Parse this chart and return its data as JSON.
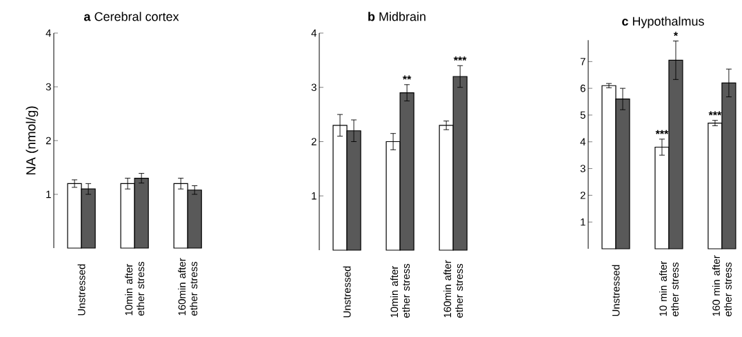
{
  "chart_data": [
    {
      "type": "bar",
      "title": "**a** Cerebral cortex",
      "ylabel": "NA (nmol/g)",
      "categories": [
        "Unstressed",
        "10min after ether stress",
        "160min after ether stress"
      ],
      "series": [
        {
          "color": "#ffffff",
          "values": [
            1.2,
            1.2,
            1.2
          ],
          "errors": [
            0.07,
            0.1,
            0.1
          ]
        },
        {
          "color": "#595959",
          "values": [
            1.1,
            1.3,
            1.08
          ],
          "errors": [
            0.1,
            0.09,
            0.08
          ]
        }
      ],
      "ylim": [
        0,
        4
      ],
      "yticks": [
        1,
        2,
        3,
        4
      ]
    },
    {
      "type": "bar",
      "title": "**b** Midbrain",
      "categories": [
        "Unstressed",
        "10min after ether stress",
        "160min after ether stress"
      ],
      "series": [
        {
          "color": "#ffffff",
          "values": [
            2.3,
            2.0,
            2.3
          ],
          "errors": [
            0.2,
            0.15,
            0.08
          ]
        },
        {
          "color": "#595959",
          "values": [
            2.2,
            2.9,
            3.2
          ],
          "errors": [
            0.2,
            0.15,
            0.2
          ]
        }
      ],
      "ylim": [
        0,
        4
      ],
      "yticks": [
        1,
        2,
        3,
        4
      ],
      "annotations": [
        {
          "text": "**",
          "x": "10min after ether stress",
          "y": 2.9
        },
        {
          "text": "***",
          "x": "160min after ether stress",
          "y": 3.2
        }
      ]
    },
    {
      "type": "bar",
      "title": "**c** Hypothalmus",
      "categories": [
        "Unstressed",
        "10 min after ether stress",
        "160 min after ether stress"
      ],
      "series": [
        {
          "color": "#ffffff",
          "values": [
            6.1,
            3.8,
            4.7
          ],
          "errors": [
            0.08,
            0.3,
            0.1
          ]
        },
        {
          "color": "#595959",
          "values": [
            5.6,
            7.05,
            6.2
          ],
          "errors": [
            0.4,
            0.72,
            0.52
          ]
        }
      ],
      "ylim": [
        0,
        7.8
      ],
      "yticks": [
        1,
        2,
        3,
        4,
        5,
        6,
        7
      ],
      "annotations": [
        {
          "text": "***",
          "x": "10 min after ether stress",
          "y": 3.8
        },
        {
          "text": "*",
          "x": "10 min after ether stress",
          "y": 7.05
        },
        {
          "text": "***",
          "x": "160 min after ether stress",
          "y": 4.7
        }
      ]
    }
  ]
}
